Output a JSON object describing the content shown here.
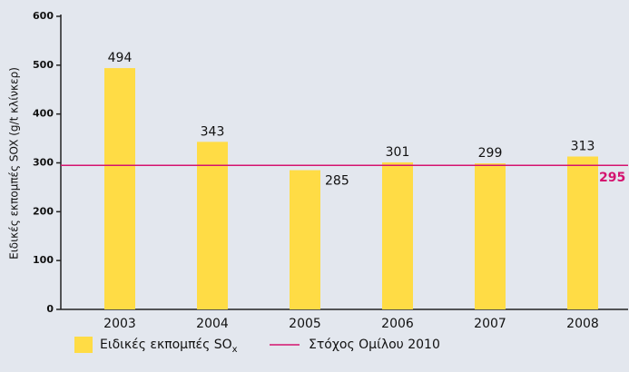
{
  "chart_data": {
    "type": "bar",
    "y_label": "Ειδικές εκπομπές SOX (g/t κλίνκερ)",
    "categories": [
      "2003",
      "2004",
      "2005",
      "2006",
      "2007",
      "2008"
    ],
    "series": [
      {
        "name": "Ειδικές εκπομπές SO",
        "name_subscript": "x",
        "color": "#ffdc45",
        "values": [
          494,
          343,
          285,
          301,
          299,
          313
        ]
      }
    ],
    "target": {
      "name": "Στόχος Ομίλου 2010",
      "value": 295,
      "color": "#d4136f"
    },
    "ylim": [
      0,
      600
    ],
    "yticks": [
      0,
      100,
      200,
      300,
      400,
      500,
      600
    ]
  }
}
